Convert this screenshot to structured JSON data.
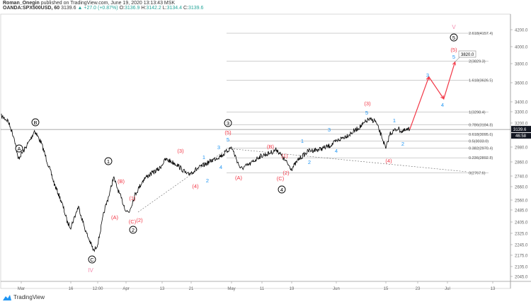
{
  "header": {
    "author": "Roman_Onegin",
    "published": "published on TradingView.com, June 19, 2020 13:13:43 MSK",
    "symbol": "OANDA:SPX500USD, 60",
    "last": "3139.6",
    "change": "+27.0 (+0.87%)",
    "o_label": "O:",
    "o": "3136.9",
    "h_label": "H:",
    "h": "3142.2",
    "l_label": "L:",
    "l": "3134.4",
    "c_label": "C:",
    "c": "3139.6"
  },
  "footer": {
    "brand": "TradingView"
  },
  "colors": {
    "up": "#26a69a",
    "red": "#f23645",
    "blue": "#2196f3",
    "pink": "#f48fb1",
    "price": "#000000"
  },
  "chart_data": {
    "type": "line",
    "title": "OANDA:SPX500USD, 60",
    "y_scale": "log",
    "y_ticks": [
      4200,
      4000,
      3800,
      3600,
      3400,
      3300,
      3200,
      2980,
      2860,
      2740,
      2660,
      2560,
      2485,
      2405,
      2325,
      2245,
      2175,
      2105,
      2045
    ],
    "y_tick_labels": [
      "4200.0",
      "4000.0",
      "3800.0",
      "3600.0",
      "3400.0",
      "3300.0",
      "3200.0",
      "2980.0",
      "2860.0",
      "2740.0",
      "2660.0",
      "2560.0",
      "2485.0",
      "2405.0",
      "2325.0",
      "2245.0",
      "2175.0",
      "2105.0",
      "2045.0"
    ],
    "x_ticks_day": [
      0,
      15,
      22,
      31,
      43,
      51,
      61,
      71,
      79,
      92,
      106,
      114,
      122,
      134
    ],
    "x_tick_labels": [
      "Mar",
      "16",
      "12:00",
      "Apr",
      "13",
      "21",
      "May",
      "11",
      "19",
      "Jun",
      "15",
      "23",
      "Jul",
      "13"
    ],
    "price_series": [
      [
        -6,
        3260
      ],
      [
        -4,
        3220
      ],
      [
        -2,
        3050
      ],
      [
        -1,
        2880
      ],
      [
        1,
        2960
      ],
      [
        3,
        3060
      ],
      [
        4,
        3130
      ],
      [
        6,
        3020
      ],
      [
        8,
        2850
      ],
      [
        10,
        2680
      ],
      [
        12,
        2560
      ],
      [
        14,
        2400
      ],
      [
        15,
        2370
      ],
      [
        17,
        2510
      ],
      [
        19,
        2330
      ],
      [
        21,
        2200
      ],
      [
        22,
        2250
      ],
      [
        24,
        2470
      ],
      [
        26,
        2630
      ],
      [
        27,
        2730
      ],
      [
        29,
        2600
      ],
      [
        31,
        2480
      ],
      [
        32,
        2470
      ],
      [
        34,
        2600
      ],
      [
        37,
        2720
      ],
      [
        40,
        2770
      ],
      [
        42,
        2800
      ],
      [
        44,
        2880
      ],
      [
        45,
        2870
      ],
      [
        47,
        2840
      ],
      [
        50,
        2750
      ],
      [
        53,
        2810
      ],
      [
        56,
        2870
      ],
      [
        59,
        2920
      ],
      [
        61,
        2980
      ],
      [
        63,
        2860
      ],
      [
        64,
        2800
      ],
      [
        67,
        2840
      ],
      [
        70,
        2900
      ],
      [
        73,
        2930
      ],
      [
        75,
        2960
      ],
      [
        77,
        2880
      ],
      [
        79,
        2800
      ],
      [
        81,
        2880
      ],
      [
        84,
        2950
      ],
      [
        87,
        2960
      ],
      [
        90,
        2990
      ],
      [
        93,
        3050
      ],
      [
        96,
        3100
      ],
      [
        99,
        3170
      ],
      [
        101,
        3230
      ],
      [
        103,
        3220
      ],
      [
        105,
        3060
      ],
      [
        106,
        2960
      ],
      [
        107,
        3100
      ],
      [
        109,
        3150
      ],
      [
        110,
        3120
      ],
      [
        112,
        3139.6
      ]
    ],
    "projection": [
      [
        112,
        3139.6
      ],
      [
        117,
        3660
      ],
      [
        121,
        3430
      ],
      [
        124,
        3820
      ]
    ],
    "projection_label": "3820.0",
    "last_price_label": "3139.6",
    "countdown": "46:58",
    "fib_levels": [
      {
        "label": "2.618(4157.4)",
        "price": 4157.4
      },
      {
        "label": "2(3829.3)",
        "price": 3829.3
      },
      {
        "label": "1.618(3626.5)",
        "price": 3626.5
      },
      {
        "label": "1(3298.4)",
        "price": 3298.4
      },
      {
        "label": "0.786(3184.8)",
        "price": 3184.8
      },
      {
        "label": "0.618(3095.6)",
        "price": 3095.6
      },
      {
        "label": "0.5(3033.0)",
        "price": 3033.0
      },
      {
        "label": "0.382(2970.4)",
        "price": 2970.4
      },
      {
        "label": "0.236(2892.8)",
        "price": 2892.8
      },
      {
        "label": "0(2767.6)",
        "price": 2767.6
      }
    ],
    "wave_labels": [
      {
        "t": "A",
        "s": "circle"
      },
      {
        "t": "B",
        "s": "circle"
      },
      {
        "t": "C",
        "s": "circle"
      },
      {
        "t": "1",
        "s": "circle"
      },
      {
        "t": "2",
        "s": "circle"
      },
      {
        "t": "3",
        "s": "circle"
      },
      {
        "t": "4",
        "s": "circle"
      },
      {
        "t": "5",
        "s": "circle"
      },
      {
        "t": "IV",
        "s": "pink"
      },
      {
        "t": "V",
        "s": "pink"
      },
      {
        "t": "(B)",
        "s": "red"
      },
      {
        "t": "(1)",
        "s": "red"
      },
      {
        "t": "(A)",
        "s": "red"
      },
      {
        "t": "(C)",
        "s": "red"
      },
      {
        "t": "(2)",
        "s": "red"
      },
      {
        "t": "(3)",
        "s": "red"
      },
      {
        "t": "(4)",
        "s": "red"
      },
      {
        "t": "(5)",
        "s": "red"
      },
      {
        "t": "(A)",
        "s": "red"
      },
      {
        "t": "(B)",
        "s": "red"
      },
      {
        "t": "(1)",
        "s": "red"
      },
      {
        "t": "(2)",
        "s": "red"
      },
      {
        "t": "(C)",
        "s": "red"
      },
      {
        "t": "(3)",
        "s": "red"
      },
      {
        "t": "(4)",
        "s": "red"
      },
      {
        "t": "(5)",
        "s": "red"
      },
      {
        "t": "1",
        "s": "blue"
      },
      {
        "t": "2",
        "s": "blue"
      },
      {
        "t": "3",
        "s": "blue"
      },
      {
        "t": "4",
        "s": "blue"
      },
      {
        "t": "5",
        "s": "blue"
      },
      {
        "t": "1",
        "s": "blue"
      },
      {
        "t": "2",
        "s": "blue"
      },
      {
        "t": "3",
        "s": "blue"
      },
      {
        "t": "4",
        "s": "blue"
      },
      {
        "t": "5",
        "s": "blue"
      },
      {
        "t": "1",
        "s": "blue"
      },
      {
        "t": "2",
        "s": "blue"
      },
      {
        "t": "3",
        "s": "blue"
      },
      {
        "t": "4",
        "s": "blue"
      },
      {
        "t": "5",
        "s": "blue"
      }
    ]
  }
}
